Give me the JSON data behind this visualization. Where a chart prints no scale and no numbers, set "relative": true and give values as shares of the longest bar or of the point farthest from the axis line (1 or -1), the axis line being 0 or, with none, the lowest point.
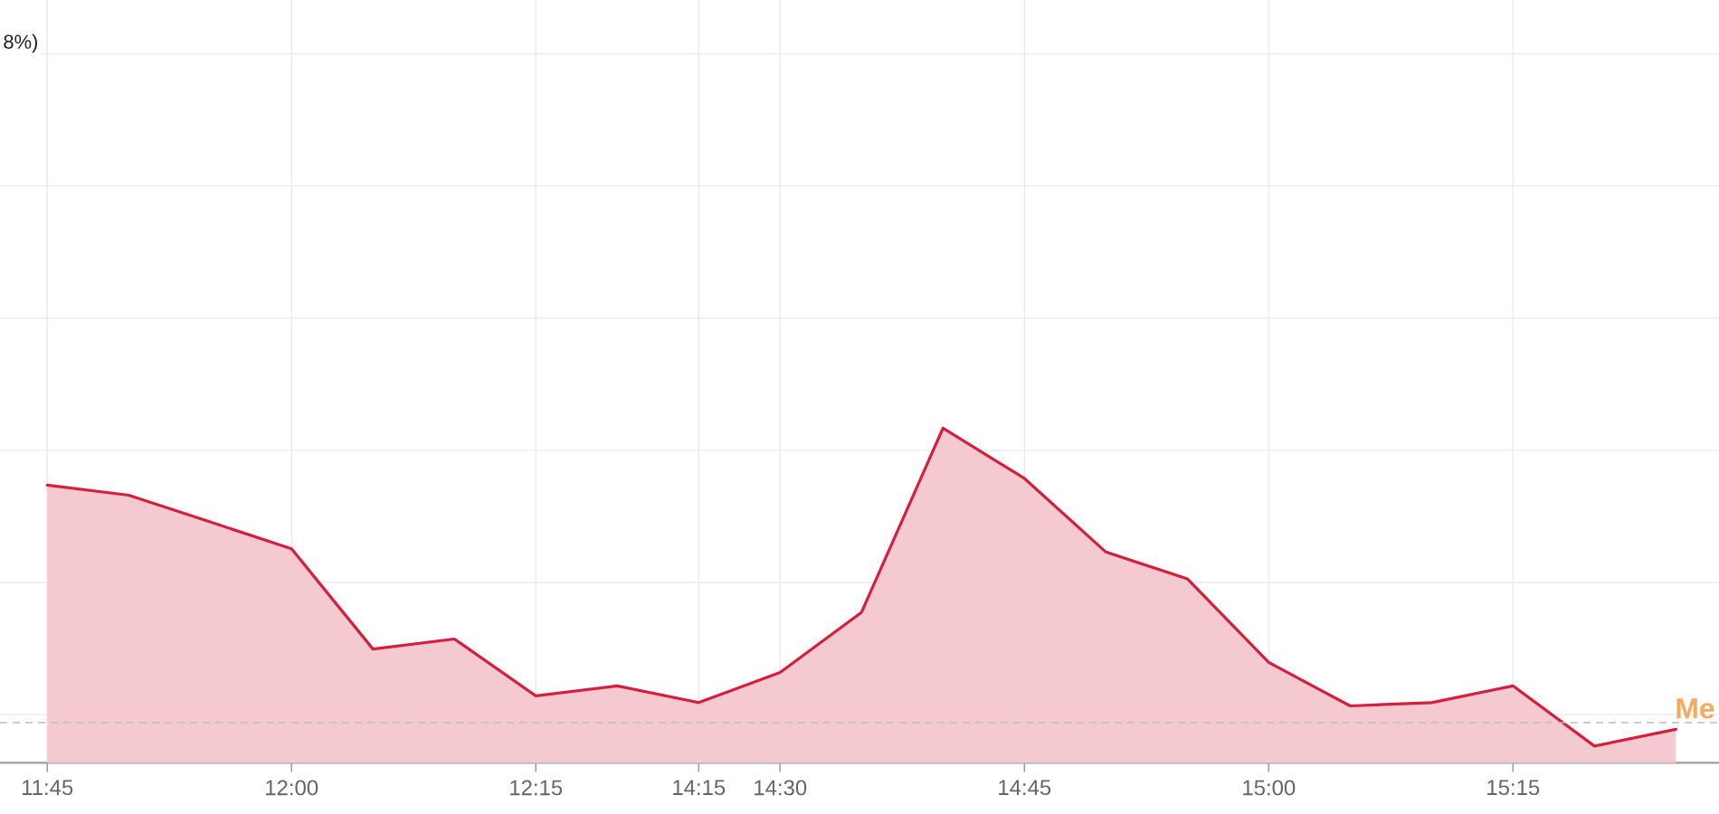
{
  "chart_data": {
    "type": "area",
    "title": "8%)",
    "relative": true,
    "categories": [
      "11:45",
      null,
      null,
      "12:00",
      null,
      null,
      "12:15",
      null,
      "14:15",
      "14:30",
      null,
      null,
      "14:45",
      null,
      null,
      "15:00",
      null,
      null,
      "15:15",
      null,
      null
    ],
    "series": [
      {
        "color": "#d61f3c",
        "values": [
          0.83,
          0.8,
          0.72,
          0.64,
          0.34,
          0.37,
          0.2,
          0.23,
          0.18,
          0.27,
          0.45,
          1,
          0.85,
          0.63,
          0.55,
          0.3,
          0.17,
          0.18,
          0.23,
          0.05,
          0.1
        ]
      }
    ],
    "ref_lines": [
      {
        "axis": "y",
        "value": 0.12,
        "label": "Me",
        "color": "#bdbdbd",
        "line_style": "dashed"
      }
    ],
    "grid": true
  }
}
